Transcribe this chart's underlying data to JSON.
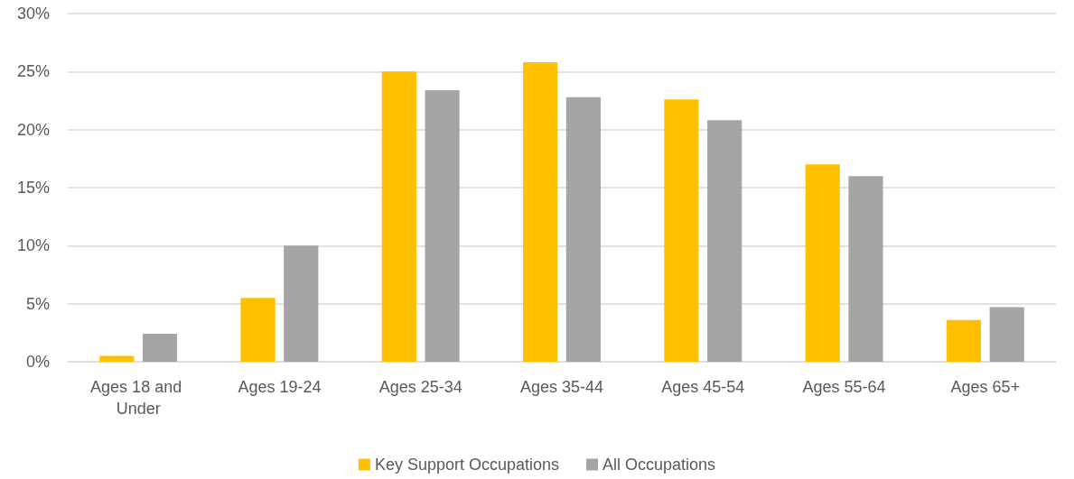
{
  "chart_data": {
    "type": "bar",
    "categories": [
      "Ages 18 and Under",
      "Ages 19-24",
      "Ages 25-34",
      "Ages 35-44",
      "Ages 45-54",
      "Ages 55-64",
      "Ages 65+"
    ],
    "series": [
      {
        "name": "Key Support Occupations",
        "color": "#ffc000",
        "values": [
          0.5,
          5.5,
          25.0,
          25.8,
          22.6,
          17.0,
          3.6
        ]
      },
      {
        "name": "All Occupations",
        "color": "#a5a5a5",
        "values": [
          2.4,
          10.0,
          23.4,
          22.8,
          20.8,
          16.0,
          4.7
        ]
      }
    ],
    "ylim": [
      0,
      30
    ],
    "yticks": [
      {
        "value": 0,
        "label": "0%"
      },
      {
        "value": 5,
        "label": "5%"
      },
      {
        "value": 10,
        "label": "10%"
      },
      {
        "value": 15,
        "label": "15%"
      },
      {
        "value": 20,
        "label": "20%"
      },
      {
        "value": 25,
        "label": "25%"
      },
      {
        "value": 30,
        "label": "30%"
      }
    ],
    "grid": "y",
    "legend": "bottom"
  }
}
